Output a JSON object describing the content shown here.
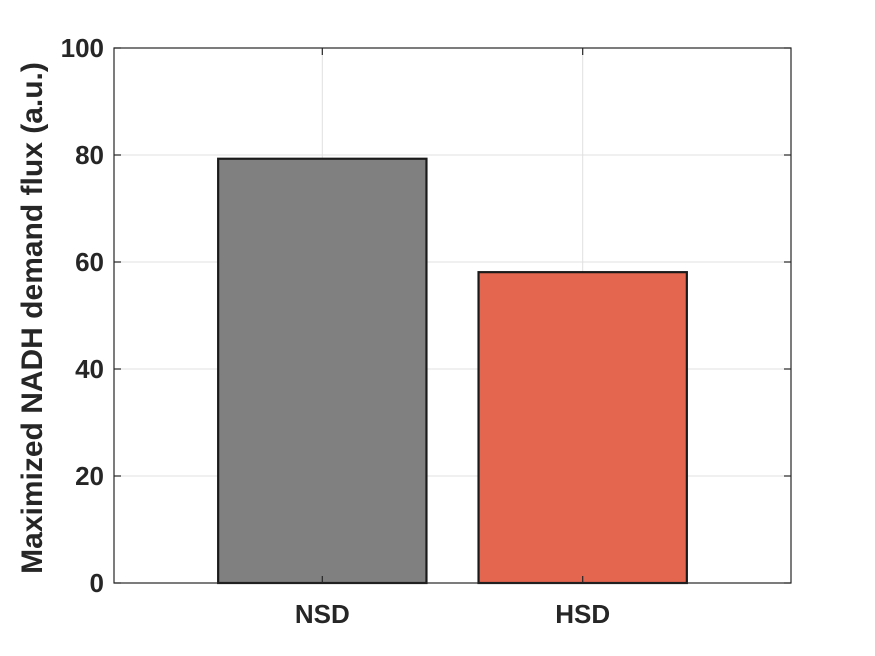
{
  "chart_data": {
    "type": "bar",
    "categories": [
      "NSD",
      "HSD"
    ],
    "values": [
      79.3,
      58.1
    ],
    "colors": [
      "#808080",
      "#e5664f"
    ],
    "title": "",
    "xlabel": "",
    "ylabel": "Maximized NADH demand flux (a.u.)",
    "ylim": [
      0,
      100
    ],
    "yticks": [
      "0",
      "20",
      "40",
      "60",
      "80",
      "100"
    ],
    "grid": true,
    "legend": "none"
  }
}
